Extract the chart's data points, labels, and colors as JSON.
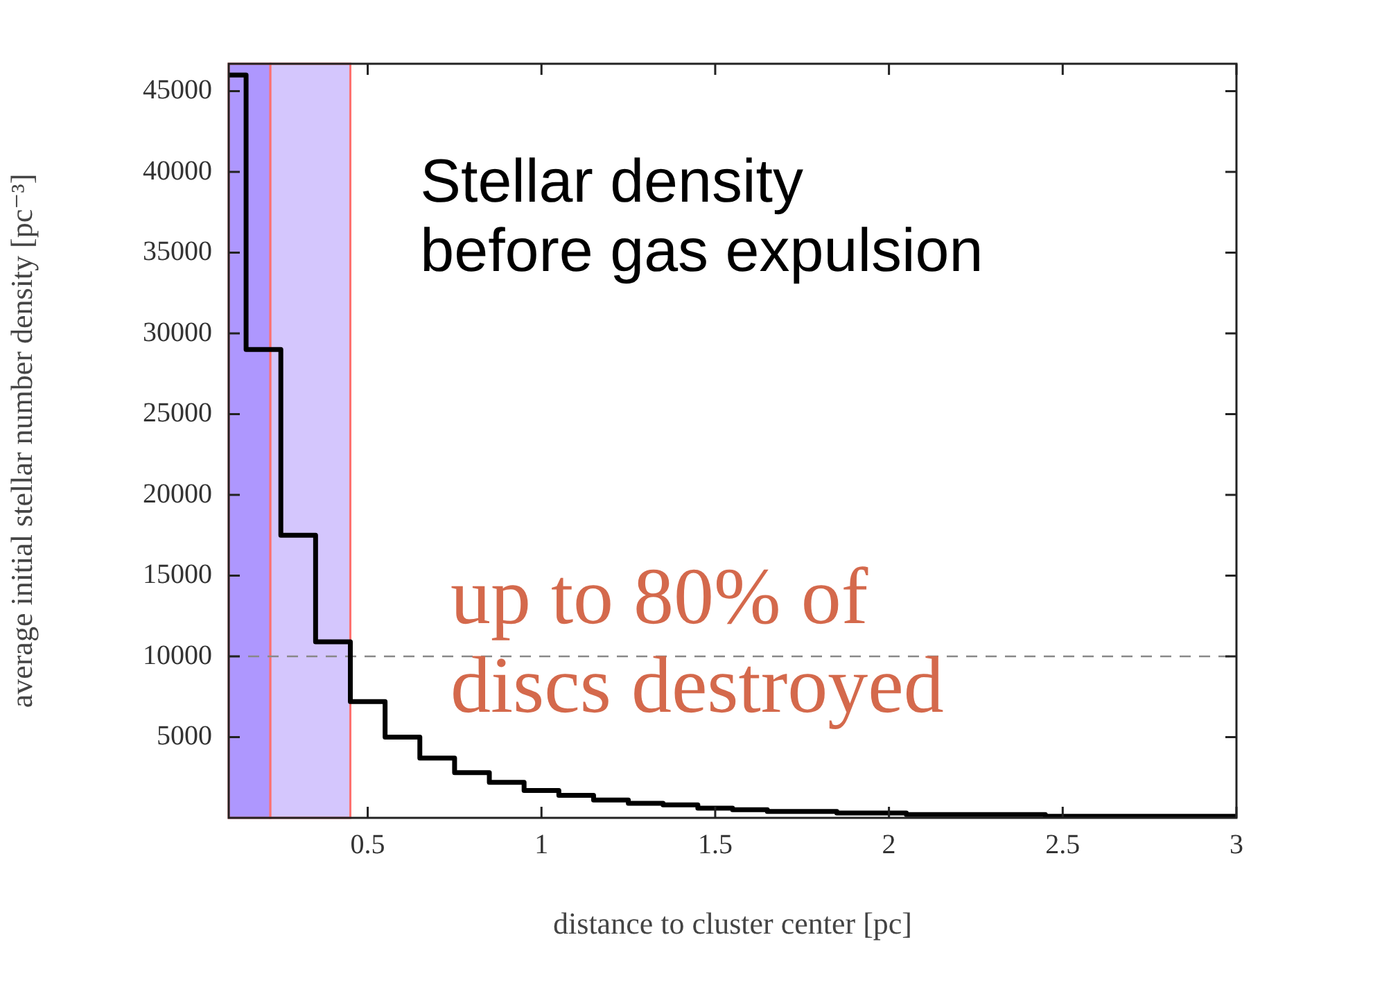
{
  "chart_data": {
    "type": "histogram",
    "xlabel": "distance to cluster center [pc]",
    "ylabel": "average initial stellar number density [pc⁻³]",
    "bins": [
      0.1,
      0.15,
      0.25,
      0.35,
      0.45,
      0.55,
      0.65,
      0.75,
      0.85,
      0.95,
      1.05,
      1.15,
      1.25,
      1.35,
      1.45,
      1.55,
      1.65,
      1.75,
      1.85,
      1.95,
      2.05,
      2.15,
      2.25,
      2.35,
      2.45,
      2.55,
      2.65,
      2.75,
      2.85,
      2.95,
      3.0
    ],
    "values": [
      46000,
      29000,
      17500,
      10900,
      7200,
      5000,
      3700,
      2800,
      2200,
      1700,
      1400,
      1100,
      900,
      800,
      600,
      500,
      400,
      400,
      300,
      300,
      200,
      200,
      200,
      200,
      100,
      100,
      100,
      100,
      100,
      100
    ],
    "color": "#000000",
    "xlim": [
      0.1,
      3
    ],
    "xticks": [
      0.5,
      1,
      1.5,
      2,
      2.5,
      3
    ],
    "ylim": [
      0,
      46700
    ],
    "yticks": [
      5000,
      10000,
      15000,
      20000,
      25000,
      30000,
      35000,
      40000,
      45000
    ],
    "grid": false,
    "legend": false,
    "bands": [
      {
        "axis": "x",
        "from": 0.1,
        "to": 0.22,
        "color": "#ae97fe"
      },
      {
        "axis": "x",
        "from": 0.22,
        "to": 0.45,
        "color": "#d4c6fd"
      }
    ],
    "ref_lines": [
      {
        "axis": "y",
        "value": 10000,
        "color": "#888888",
        "line_style": "dashed"
      }
    ],
    "annotations": [
      "Stellar density\nbefore gas expulsion",
      "up to 80% of\ndiscs destroyed"
    ]
  }
}
